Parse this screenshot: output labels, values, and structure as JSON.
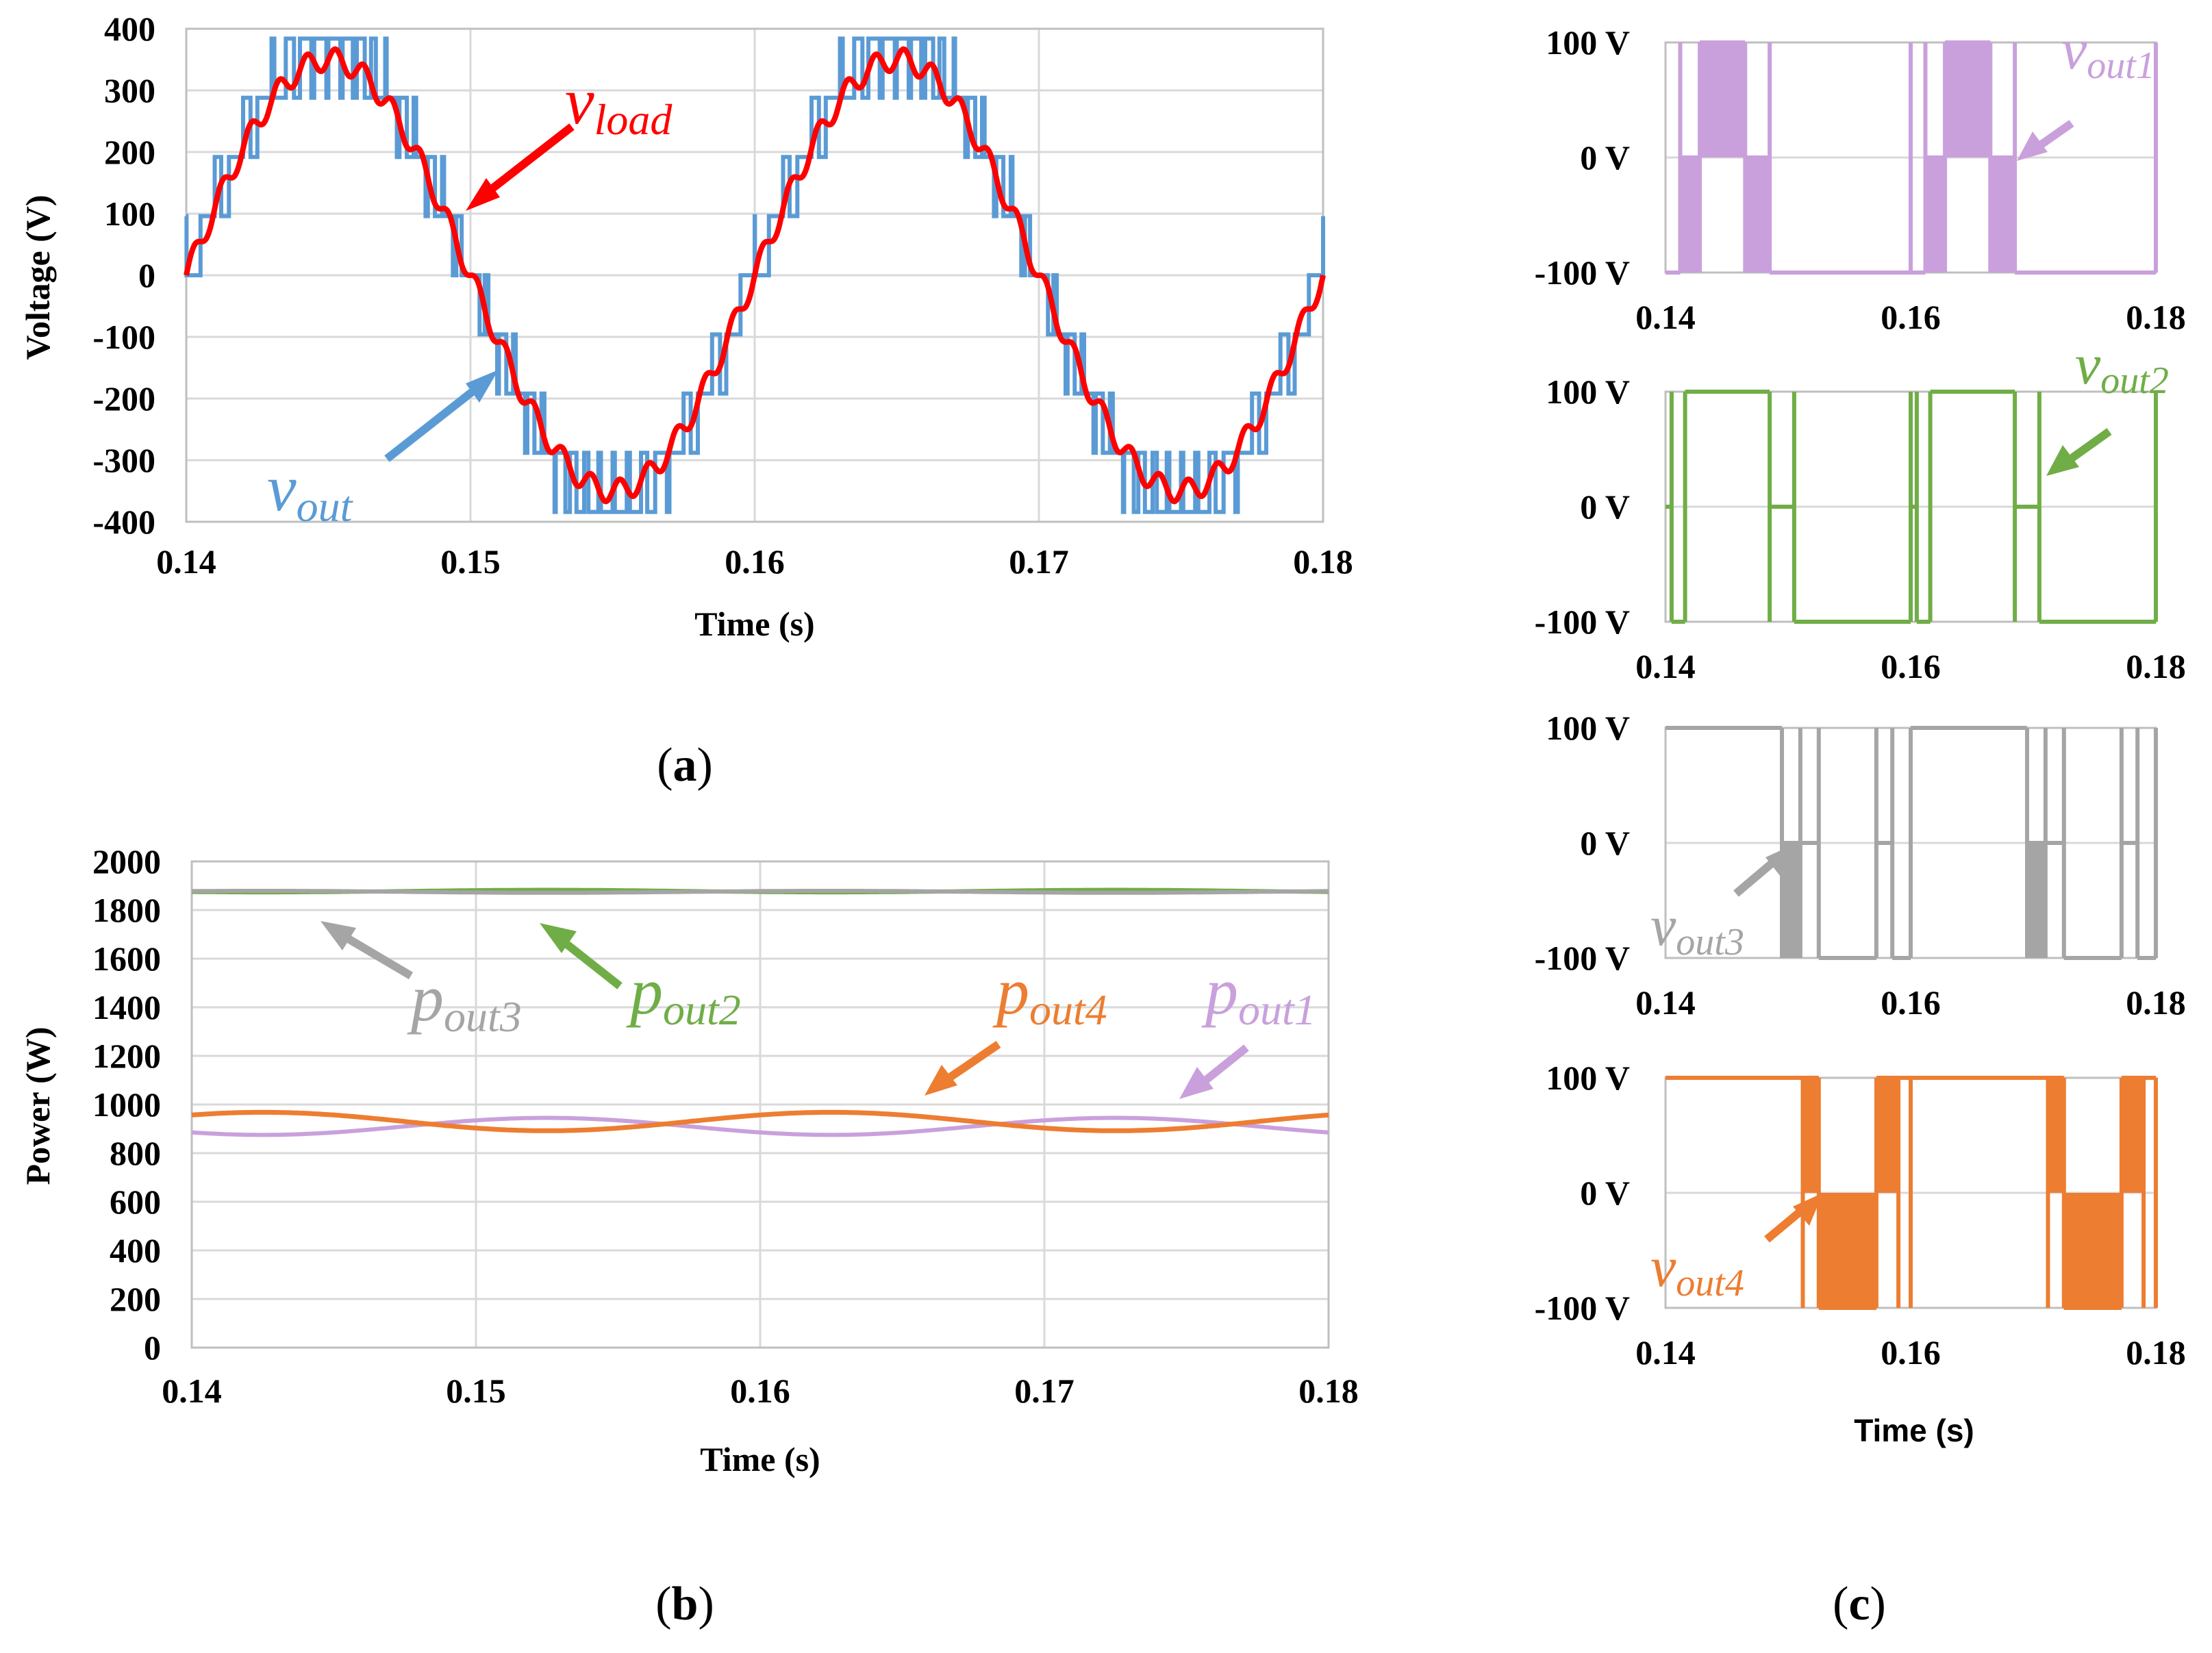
{
  "chart_data": [
    {
      "id": "a",
      "type": "line",
      "caption_letter": "a",
      "xlabel": "Time (s)",
      "ylabel": "Voltage (V)",
      "xlim": [
        0.14,
        0.18
      ],
      "ylim": [
        -400,
        400
      ],
      "x_ticks": [
        "0.14",
        "0.15",
        "0.16",
        "0.17",
        "0.18"
      ],
      "y_ticks": [
        "400",
        "300",
        "200",
        "100",
        "0",
        "-100",
        "-200",
        "-300",
        "-400"
      ],
      "series": [
        {
          "name": "vout",
          "color": "#5b9bd5",
          "kind": "staircase",
          "description_values": {
            "amplitude_levels": [
              0,
              96,
              192,
              288,
              384
            ],
            "frequency_hz": 50,
            "phase_peak_t": 0.145
          }
        },
        {
          "name": "vload",
          "color": "#ff0000",
          "kind": "sine_with_ripple",
          "description_values": {
            "amplitude": 350,
            "frequency_hz": 50,
            "peak_t": 0.145
          }
        }
      ],
      "annotations": [
        {
          "base": "v",
          "sub": "load",
          "color": "#ff0000"
        },
        {
          "base": "v",
          "sub": "out",
          "color": "#5b9bd5"
        }
      ]
    },
    {
      "id": "b",
      "type": "line",
      "caption_letter": "b",
      "xlabel": "Time (s)",
      "ylabel": "Power (W)",
      "xlim": [
        0.14,
        0.18
      ],
      "ylim": [
        0,
        2000
      ],
      "x_ticks": [
        "0.14",
        "0.15",
        "0.16",
        "0.17",
        "0.18"
      ],
      "y_ticks": [
        "2000",
        "1800",
        "1600",
        "1400",
        "1200",
        "1000",
        "800",
        "600",
        "400",
        "200",
        "0"
      ],
      "series": [
        {
          "name": "pout1",
          "color": "#c9a0dc",
          "mean": 910,
          "amplitude": 35,
          "period": 0.02,
          "peak_t": 0.1525
        },
        {
          "name": "pout2",
          "color": "#70ad47",
          "mean": 1878,
          "amplitude": 5,
          "period": 0.02,
          "peak_t": 0.1525
        },
        {
          "name": "pout3",
          "color": "#a5a5a5",
          "mean": 1875,
          "amplitude": 4,
          "period": 0.02,
          "peak_t": 0.1425
        },
        {
          "name": "pout4",
          "color": "#ed7d31",
          "mean": 930,
          "amplitude": 38,
          "period": 0.02,
          "peak_t": 0.1425
        }
      ],
      "annotations": [
        {
          "base": "p",
          "sub": "out3",
          "color": "#a5a5a5"
        },
        {
          "base": "p",
          "sub": "out2",
          "color": "#70ad47"
        },
        {
          "base": "p",
          "sub": "out4",
          "color": "#ed7d31"
        },
        {
          "base": "p",
          "sub": "out1",
          "color": "#c9a0dc"
        }
      ]
    },
    {
      "id": "c",
      "type": "line",
      "caption_letter": "c",
      "xlabel": "Time (s)",
      "xlim": [
        0.14,
        0.18
      ],
      "ylim": [
        -100,
        100
      ],
      "x_ticks": [
        "0.14",
        "0.16",
        "0.18"
      ],
      "y_ticks": [
        "100 V",
        "0 V",
        "-100 V"
      ],
      "subplots": [
        {
          "name": "vout1",
          "color": "#c9a0dc",
          "segments": [
            [
              0.14,
              0.1412,
              -100
            ],
            [
              0.1412,
              0.1428,
              0,
              "pwm"
            ],
            [
              0.1428,
              0.1465,
              100,
              "pwm"
            ],
            [
              0.1465,
              0.1485,
              0,
              "pwm"
            ],
            [
              0.1485,
              0.16,
              -100
            ]
          ]
        },
        {
          "name": "vout2",
          "color": "#70ad47",
          "segments": [
            [
              0.14,
              0.1405,
              0
            ],
            [
              0.1405,
              0.1416,
              -100
            ],
            [
              0.1416,
              0.1485,
              100
            ],
            [
              0.1485,
              0.1505,
              0
            ],
            [
              0.1505,
              0.16,
              -100
            ]
          ]
        },
        {
          "name": "vout3",
          "color": "#a5a5a5",
          "segments": [
            [
              0.14,
              0.1495,
              100
            ],
            [
              0.1495,
              0.151,
              0,
              "pwm"
            ],
            [
              0.151,
              0.1525,
              0
            ],
            [
              0.1525,
              0.1572,
              -100
            ],
            [
              0.1572,
              0.1585,
              0
            ],
            [
              0.1585,
              0.16,
              -100
            ]
          ]
        },
        {
          "name": "vout4",
          "color": "#ed7d31",
          "segments": [
            [
              0.14,
              0.1512,
              100
            ],
            [
              0.1512,
              0.1525,
              100,
              "pwm"
            ],
            [
              0.1525,
              0.1572,
              -100,
              "pwm"
            ],
            [
              0.1572,
              0.159,
              100,
              "pwm"
            ],
            [
              0.159,
              0.16,
              100
            ]
          ]
        }
      ],
      "annotations": [
        {
          "base": "v",
          "sub": "out1",
          "color": "#c9a0dc"
        },
        {
          "base": "v",
          "sub": "out2",
          "color": "#70ad47"
        },
        {
          "base": "v",
          "sub": "out3",
          "color": "#a5a5a5"
        },
        {
          "base": "v",
          "sub": "out4",
          "color": "#ed7d31"
        }
      ]
    }
  ]
}
